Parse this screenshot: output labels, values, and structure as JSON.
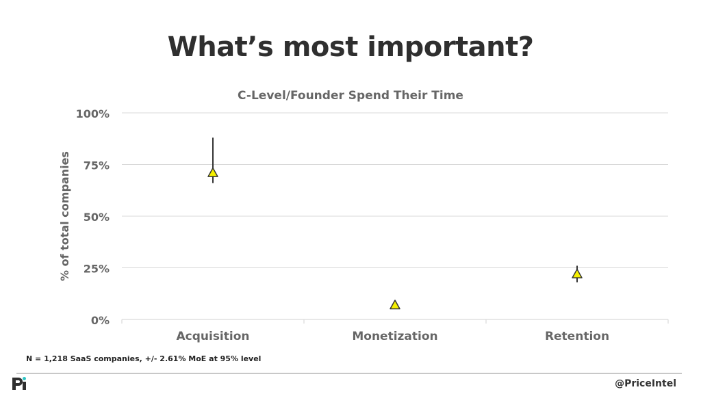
{
  "slide": {
    "title": "What’s most important?",
    "footnote": "N = 1,218 SaaS companies, +/- 2.61% MoE at 95% level",
    "handle": "@PriceIntel",
    "logo_icon": "priceintel-logo-icon"
  },
  "colors": {
    "marker_fill": "#f5f000",
    "marker_stroke": "#333333",
    "error_bar": "#333333",
    "grid": "#d9d9d9",
    "axis_text": "#666666"
  },
  "chart_data": {
    "type": "scatter",
    "title": "C-Level/Founder Spend Their Time",
    "xlabel": "",
    "ylabel": "% of total companies",
    "categories": [
      "Acquisition",
      "Monetization",
      "Retention"
    ],
    "values": [
      71,
      7,
      22
    ],
    "error_upper": [
      88,
      7,
      26
    ],
    "error_lower": [
      66,
      7,
      18
    ],
    "ylim": [
      0,
      100
    ],
    "yticks": [
      "0%",
      "25%",
      "50%",
      "75%",
      "100%"
    ],
    "ytick_values": [
      0,
      25,
      50,
      75,
      100
    ],
    "grid": true,
    "marker": "triangle"
  }
}
